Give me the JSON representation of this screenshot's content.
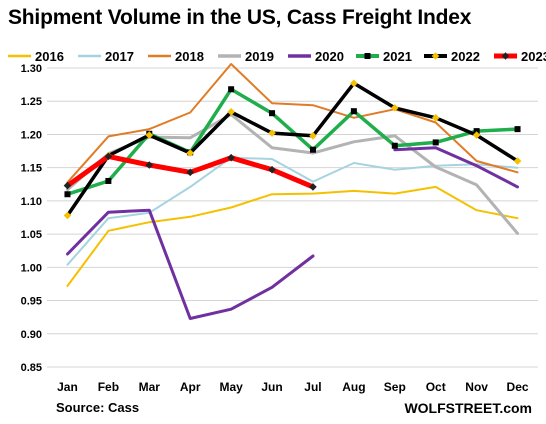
{
  "title": "Shipment Volume in the US, Cass Freight Index",
  "source": "Source: Cass",
  "brand": "WOLFSTREET.com",
  "chart_data": {
    "type": "line",
    "categories": [
      "Jan",
      "Feb",
      "Mar",
      "Apr",
      "May",
      "Jun",
      "Jul",
      "Aug",
      "Sep",
      "Oct",
      "Nov",
      "Dec"
    ],
    "ylim": [
      0.85,
      1.3
    ],
    "yticks": [
      "0.85",
      "0.90",
      "0.95",
      "1.00",
      "1.05",
      "1.10",
      "1.15",
      "1.20",
      "1.25",
      "1.30"
    ],
    "grid": true,
    "legend_position": "top",
    "series": [
      {
        "name": "2016",
        "color": "#f5c000",
        "width": 2,
        "marker": "none",
        "values": [
          0.972,
          1.055,
          1.068,
          1.076,
          1.09,
          1.11,
          1.111,
          1.115,
          1.111,
          1.121,
          1.086,
          1.074
        ]
      },
      {
        "name": "2017",
        "color": "#a6d3e0",
        "width": 2,
        "marker": "none",
        "values": [
          1.004,
          1.074,
          1.082,
          1.121,
          1.165,
          1.163,
          1.129,
          1.157,
          1.147,
          1.153,
          1.155,
          1.15
        ]
      },
      {
        "name": "2018",
        "color": "#e07b26",
        "width": 2,
        "marker": "none",
        "values": [
          1.128,
          1.197,
          1.208,
          1.233,
          1.306,
          1.247,
          1.244,
          1.225,
          1.238,
          1.218,
          1.16,
          1.143
        ]
      },
      {
        "name": "2019",
        "color": "#b3b3b3",
        "width": 3,
        "marker": "none",
        "values": [
          1.117,
          1.171,
          1.196,
          1.195,
          1.23,
          1.18,
          1.172,
          1.189,
          1.198,
          1.151,
          1.124,
          1.051
        ]
      },
      {
        "name": "2020",
        "color": "#7030a0",
        "width": 3,
        "marker": "none",
        "values": [
          1.02,
          1.083,
          1.086,
          0.923,
          0.937,
          0.97,
          1.017,
          null,
          1.177,
          1.18,
          1.153,
          1.121
        ]
      },
      {
        "name": "2021",
        "color": "#1fae4b",
        "width": 3.5,
        "marker": "square",
        "values": [
          1.11,
          1.13,
          1.201,
          1.173,
          1.268,
          1.232,
          1.177,
          1.235,
          1.183,
          1.188,
          1.205,
          1.208
        ]
      },
      {
        "name": "2022",
        "color": "#000000",
        "width": 3.5,
        "marker": "diamond",
        "values": [
          1.078,
          1.168,
          1.199,
          1.172,
          1.234,
          1.202,
          1.198,
          1.277,
          1.24,
          1.225,
          1.199,
          1.16
        ]
      },
      {
        "name": "2023",
        "color": "#ff0000",
        "width": 5,
        "marker": "diamond",
        "values": [
          1.123,
          1.167,
          1.154,
          1.143,
          1.165,
          1.147,
          1.121,
          null,
          null,
          null,
          null,
          null
        ]
      }
    ]
  }
}
